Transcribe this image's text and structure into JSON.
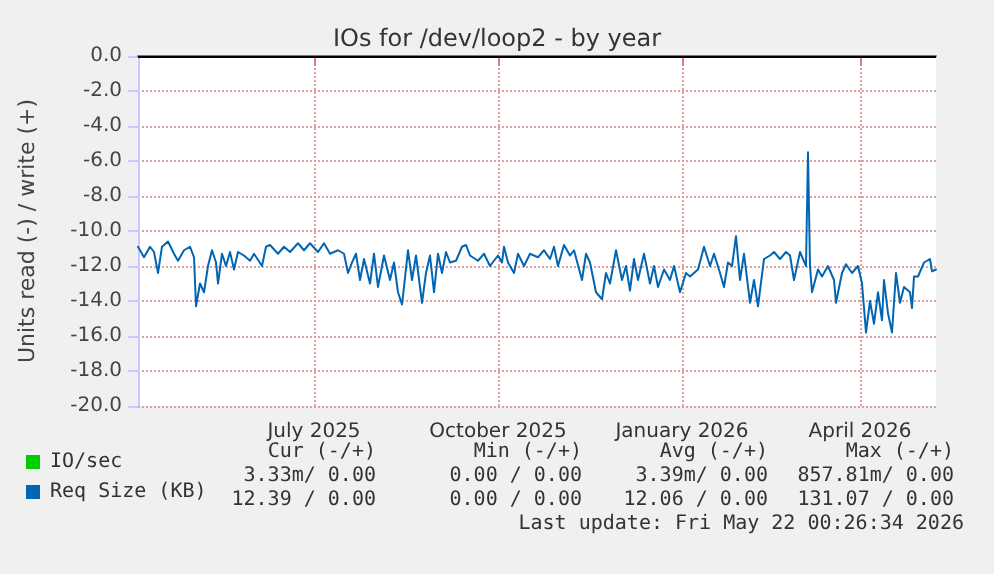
{
  "chart_data": {
    "type": "line",
    "title": "IOs for /dev/loop2 - by year",
    "ylabel": "Units read (-) / write (+)",
    "xlim": [
      "2025-04-19",
      "2026-05-23"
    ],
    "xticks": [
      {
        "value": "2025-07-16",
        "label": "July 2025"
      },
      {
        "value": "2025-10-16",
        "label": "October 2025"
      },
      {
        "value": "2026-01-16",
        "label": "January 2026"
      },
      {
        "value": "2026-04-15",
        "label": "April 2026"
      }
    ],
    "ylim": [
      -20,
      0
    ],
    "yticks": [
      {
        "value": 0,
        "label": "0.0"
      },
      {
        "value": -2,
        "label": "-2.0"
      },
      {
        "value": -4,
        "label": "-4.0"
      },
      {
        "value": -6,
        "label": "-6.0"
      },
      {
        "value": -8,
        "label": "-8.0"
      },
      {
        "value": -10,
        "label": "-10.0"
      },
      {
        "value": -12,
        "label": "-12.0"
      },
      {
        "value": -14,
        "label": "-14.0"
      },
      {
        "value": -16,
        "label": "-16.0"
      },
      {
        "value": -18,
        "label": "-18.0"
      },
      {
        "value": -20,
        "label": "-20.0"
      }
    ],
    "grid": true,
    "legend": "bottom",
    "marker": "none",
    "line_style": "solid",
    "ref_lines": [
      {
        "axis": "y",
        "value": 0,
        "color": "#000000"
      }
    ],
    "series": [
      {
        "name": "IO/sec",
        "color": "#00cc00",
        "x": [
          "2025-04-19",
          "2026-05-23"
        ],
        "values": [
          0,
          0
        ]
      },
      {
        "name": "Req Size (KB)",
        "color": "#0066b3",
        "x": [
          "2025-04-19",
          "2025-04-22",
          "2025-04-25",
          "2025-04-27",
          "2025-04-29",
          "2025-05-01",
          "2025-05-04",
          "2025-05-07",
          "2025-05-09",
          "2025-05-12",
          "2025-05-15",
          "2025-05-17",
          "2025-05-18",
          "2025-05-20",
          "2025-05-22",
          "2025-05-24",
          "2025-05-26",
          "2025-05-28",
          "2025-05-29",
          "2025-05-31",
          "2025-06-02",
          "2025-06-04",
          "2025-06-06",
          "2025-06-08",
          "2025-06-11",
          "2025-06-14",
          "2025-06-16",
          "2025-06-20",
          "2025-06-22",
          "2025-06-24",
          "2025-06-28",
          "2025-07-01",
          "2025-07-04",
          "2025-07-08",
          "2025-07-11",
          "2025-07-14",
          "2025-07-18",
          "2025-07-21",
          "2025-07-24",
          "2025-07-28",
          "2025-07-31",
          "2025-08-02",
          "2025-08-04",
          "2025-08-06",
          "2025-08-08",
          "2025-08-10",
          "2025-08-13",
          "2025-08-15",
          "2025-08-17",
          "2025-08-20",
          "2025-08-23",
          "2025-08-25",
          "2025-08-27",
          "2025-08-29",
          "2025-08-30",
          "2025-09-01",
          "2025-09-03",
          "2025-09-05",
          "2025-09-08",
          "2025-09-10",
          "2025-09-12",
          "2025-09-14",
          "2025-09-16",
          "2025-09-18",
          "2025-09-20",
          "2025-09-22",
          "2025-09-25",
          "2025-09-28",
          "2025-09-30",
          "2025-10-02",
          "2025-10-06",
          "2025-10-09",
          "2025-10-12",
          "2025-10-16",
          "2025-10-18",
          "2025-10-19",
          "2025-10-21",
          "2025-10-24",
          "2025-10-26",
          "2025-10-29",
          "2025-11-01",
          "2025-11-05",
          "2025-11-08",
          "2025-11-11",
          "2025-11-13",
          "2025-11-15",
          "2025-11-18",
          "2025-11-21",
          "2025-11-23",
          "2025-11-27",
          "2025-11-29",
          "2025-12-01",
          "2025-12-04",
          "2025-12-07",
          "2025-12-09",
          "2025-12-11",
          "2025-12-14",
          "2025-12-17",
          "2025-12-19",
          "2025-12-21",
          "2025-12-23",
          "2025-12-25",
          "2025-12-28",
          "2025-12-31",
          "2026-01-02",
          "2026-01-04",
          "2026-01-07",
          "2026-01-10",
          "2026-01-12",
          "2026-01-15",
          "2026-01-18",
          "2026-01-20",
          "2026-01-24",
          "2026-01-27",
          "2026-01-30",
          "2026-02-01",
          "2026-02-04",
          "2026-02-06",
          "2026-02-08",
          "2026-02-10",
          "2026-02-12",
          "2026-02-14",
          "2026-02-16",
          "2026-02-19",
          "2026-02-21",
          "2026-02-23",
          "2026-02-26",
          "2026-03-01",
          "2026-03-03",
          "2026-03-06",
          "2026-03-09",
          "2026-03-11",
          "2026-03-13",
          "2026-03-16",
          "2026-03-19",
          "2026-03-20",
          "2026-03-21",
          "2026-03-22",
          "2026-03-25",
          "2026-03-27",
          "2026-03-30",
          "2026-04-02",
          "2026-04-03",
          "2026-04-06",
          "2026-04-08",
          "2026-04-11",
          "2026-04-14",
          "2026-04-16",
          "2026-04-18",
          "2026-04-20",
          "2026-04-22",
          "2026-04-24",
          "2026-04-26",
          "2026-04-27",
          "2026-04-29",
          "2026-05-01",
          "2026-05-03",
          "2026-05-05",
          "2026-05-07",
          "2026-05-10",
          "2026-05-11",
          "2026-05-12",
          "2026-05-14",
          "2026-05-17",
          "2026-05-20",
          "2026-05-21",
          "2026-05-23"
        ],
        "values": [
          -10.9,
          -11.5,
          -10.9,
          -11.2,
          -12.4,
          -10.9,
          -10.6,
          -11.3,
          -11.7,
          -11.1,
          -10.9,
          -11.5,
          -14.3,
          -13.0,
          -13.5,
          -12.0,
          -11.1,
          -11.8,
          -13.0,
          -11.3,
          -12.0,
          -11.2,
          -12.2,
          -11.2,
          -11.4,
          -11.7,
          -11.3,
          -12.0,
          -10.9,
          -10.8,
          -11.3,
          -10.9,
          -11.2,
          -10.7,
          -11.1,
          -10.7,
          -11.2,
          -10.7,
          -11.3,
          -11.1,
          -11.3,
          -12.4,
          -11.8,
          -11.3,
          -12.8,
          -11.6,
          -13.0,
          -11.3,
          -13.2,
          -11.4,
          -12.8,
          -11.8,
          -13.5,
          -14.2,
          -13.2,
          -11.1,
          -12.8,
          -11.4,
          -14.1,
          -12.4,
          -11.4,
          -13.5,
          -11.3,
          -12.4,
          -11.2,
          -11.8,
          -11.7,
          -10.9,
          -10.8,
          -11.4,
          -11.7,
          -11.3,
          -12.0,
          -11.4,
          -11.8,
          -10.9,
          -11.8,
          -12.4,
          -11.3,
          -12.0,
          -11.3,
          -11.5,
          -11.1,
          -11.6,
          -10.9,
          -12.0,
          -10.8,
          -11.4,
          -11.1,
          -12.8,
          -11.3,
          -11.8,
          -13.5,
          -13.9,
          -12.4,
          -13.0,
          -11.1,
          -12.8,
          -12.0,
          -13.4,
          -11.6,
          -12.8,
          -11.3,
          -13.0,
          -12.0,
          -13.2,
          -12.2,
          -12.8,
          -12.0,
          -13.5,
          -12.4,
          -12.6,
          -12.2,
          -10.9,
          -12.0,
          -11.3,
          -12.4,
          -13.2,
          -11.8,
          -12.0,
          -10.3,
          -12.8,
          -11.3,
          -14.1,
          -12.8,
          -14.3,
          -11.6,
          -11.4,
          -11.2,
          -11.6,
          -11.2,
          -11.4,
          -12.8,
          -11.2,
          -12.0,
          -5.5,
          -12.0,
          -13.5,
          -12.2,
          -12.6,
          -12.0,
          -12.8,
          -14.1,
          -12.4,
          -11.9,
          -12.4,
          -12.0,
          -13.0,
          -15.8,
          -14.0,
          -15.3,
          -13.5,
          -15.1,
          -12.8,
          -14.7,
          -15.8,
          -12.4,
          -14.1,
          -13.2,
          -13.5,
          -14.4,
          -12.6,
          -12.6,
          -11.8,
          -11.6,
          -12.3,
          -12.2
        ]
      }
    ],
    "annotations": [
      "Cur (-/+)",
      "Min (-/+)",
      "Avg (-/+)",
      "Max (-/+)",
      "3.33m/ 0.00",
      "0.00 / 0.00",
      "3.39m/ 0.00",
      "857.81m/ 0.00",
      "12.39 / 0.00",
      "0.00 / 0.00",
      "12.06 / 0.00",
      "131.07 / 0.00",
      "Last update: Fri May 22 00:26:34 2026"
    ]
  }
}
